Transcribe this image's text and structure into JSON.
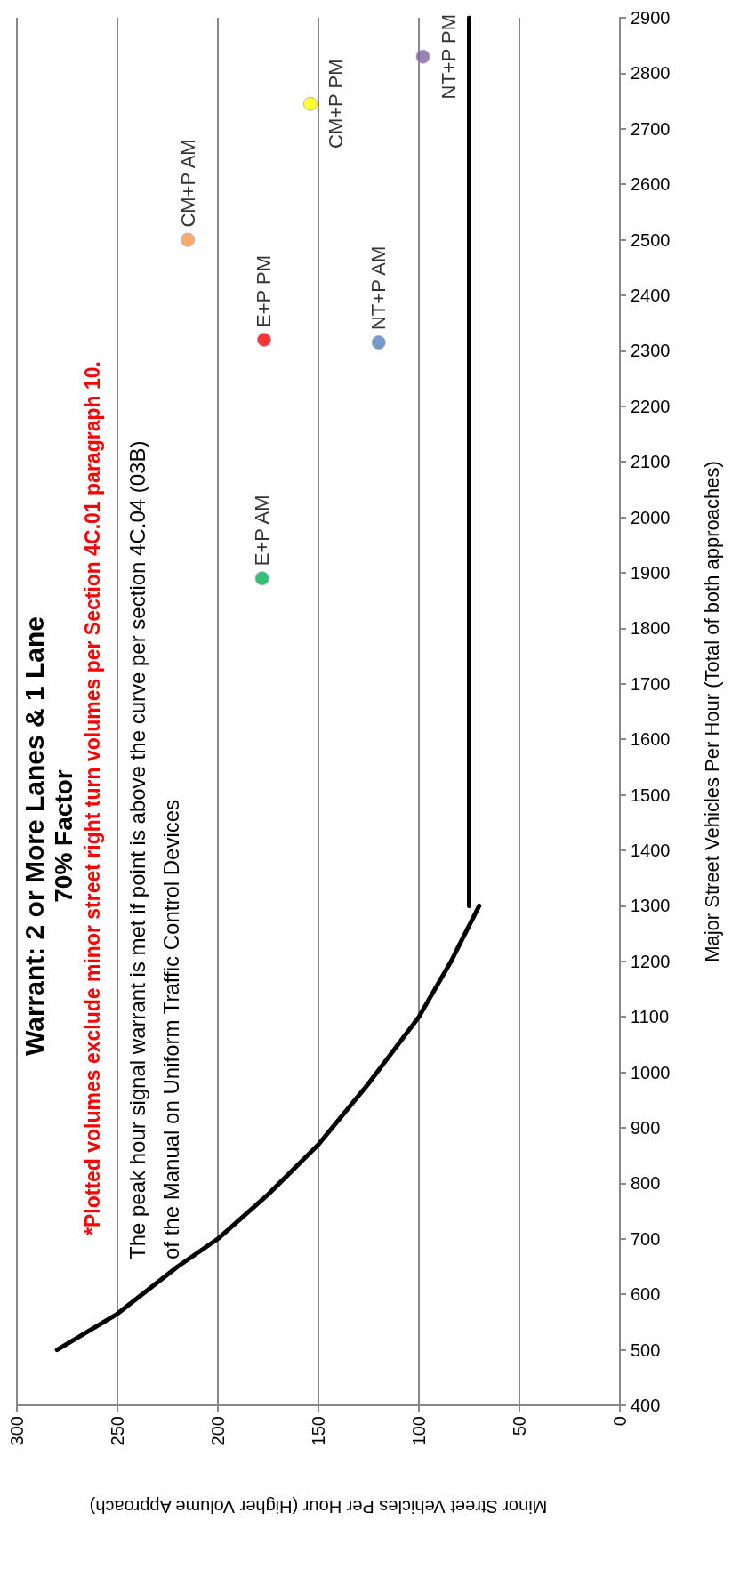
{
  "chart_data": {
    "type": "scatter",
    "title": "Warrant: 2 or More Lanes & 1 Lane",
    "subtitle": "70% Factor",
    "xlabel": "Minor Street Vehicles Per Hour (Higher Volume Approach)",
    "ylabel": "Major Street Vehicles Per Hour (Total of both approaches)",
    "annotations": [
      "*Plotted volumes exclude minor street right turn volumes per Section 4C.01 paragraph 10.",
      "The peak hour signal warrant is met if point is above the curve per section 4C.04 (03B)",
      "of the Manual on Uniform Traffic Control Devices"
    ],
    "xlim": [
      300,
      0
    ],
    "xticks": [
      300,
      250,
      200,
      150,
      100,
      50,
      0
    ],
    "ylim": [
      400,
      2900
    ],
    "yticks": [
      400,
      500,
      600,
      700,
      800,
      900,
      1000,
      1100,
      1200,
      1300,
      1400,
      1500,
      1600,
      1700,
      1800,
      1900,
      2000,
      2100,
      2200,
      2300,
      2400,
      2500,
      2600,
      2700,
      2800,
      2900
    ],
    "grid": "x",
    "marker": "circle",
    "series": [
      {
        "type": "line",
        "marker": "none",
        "line_style": "solid",
        "color": "#000000",
        "x": [
          280,
          250,
          220,
          200,
          175,
          150,
          125,
          100,
          84,
          70
        ],
        "values": [
          500,
          565,
          650,
          700,
          780,
          870,
          980,
          1100,
          1200,
          1300
        ]
      },
      {
        "type": "line",
        "marker": "none",
        "line_style": "solid",
        "color": "#000000",
        "x": [
          75,
          75
        ],
        "values": [
          1300,
          2900
        ]
      },
      {
        "name": "E+P AM",
        "color": "#00b050",
        "x": [
          178
        ],
        "values": [
          1890
        ]
      },
      {
        "name": "E+P PM",
        "color": "#ff0000",
        "x": [
          177
        ],
        "values": [
          2320
        ]
      },
      {
        "name": "CM+P AM",
        "color": "#f79646",
        "x": [
          215
        ],
        "values": [
          2500
        ]
      },
      {
        "name": "CM+P PM",
        "color": "#ffff00",
        "x": [
          154
        ],
        "values": [
          2745
        ]
      },
      {
        "name": "NT+P AM",
        "color": "#4f81bd",
        "x": [
          120
        ],
        "values": [
          2315
        ]
      },
      {
        "name": "NT+P PM",
        "color": "#8064a2",
        "x": [
          98
        ],
        "values": [
          2830
        ]
      }
    ]
  }
}
